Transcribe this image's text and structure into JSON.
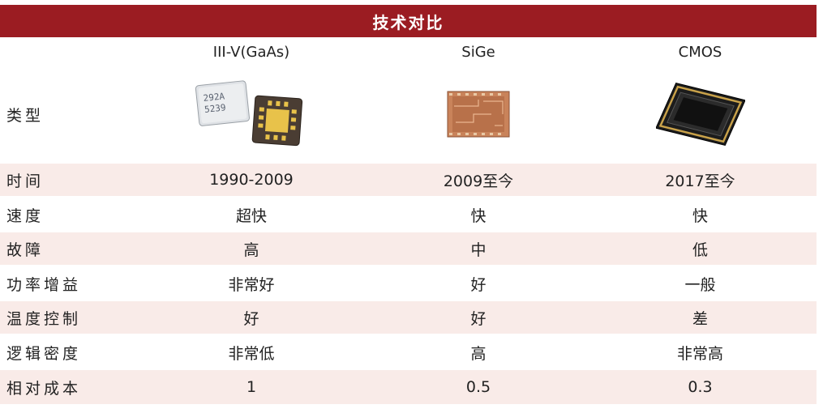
{
  "title": "技术对比",
  "columns": [
    "III-V(GaAs)",
    "SiGe",
    "CMOS"
  ],
  "type_label": "类型",
  "chip_markings": {
    "line1": "292A",
    "line2": "5239"
  },
  "rows": [
    {
      "label": "时间",
      "values": [
        "1990-2009",
        "2009至今",
        "2017至今"
      ]
    },
    {
      "label": "速度",
      "values": [
        "超快",
        "快",
        "快"
      ]
    },
    {
      "label": "故障",
      "values": [
        "高",
        "中",
        "低"
      ]
    },
    {
      "label": "功率增益",
      "values": [
        "非常好",
        "好",
        "一般"
      ]
    },
    {
      "label": "温度控制",
      "values": [
        "好",
        "好",
        "差"
      ]
    },
    {
      "label": "逻辑密度",
      "values": [
        "非常低",
        "高",
        "非常高"
      ]
    },
    {
      "label": "相对成本",
      "values": [
        "1",
        "0.5",
        "0.3"
      ]
    }
  ]
}
